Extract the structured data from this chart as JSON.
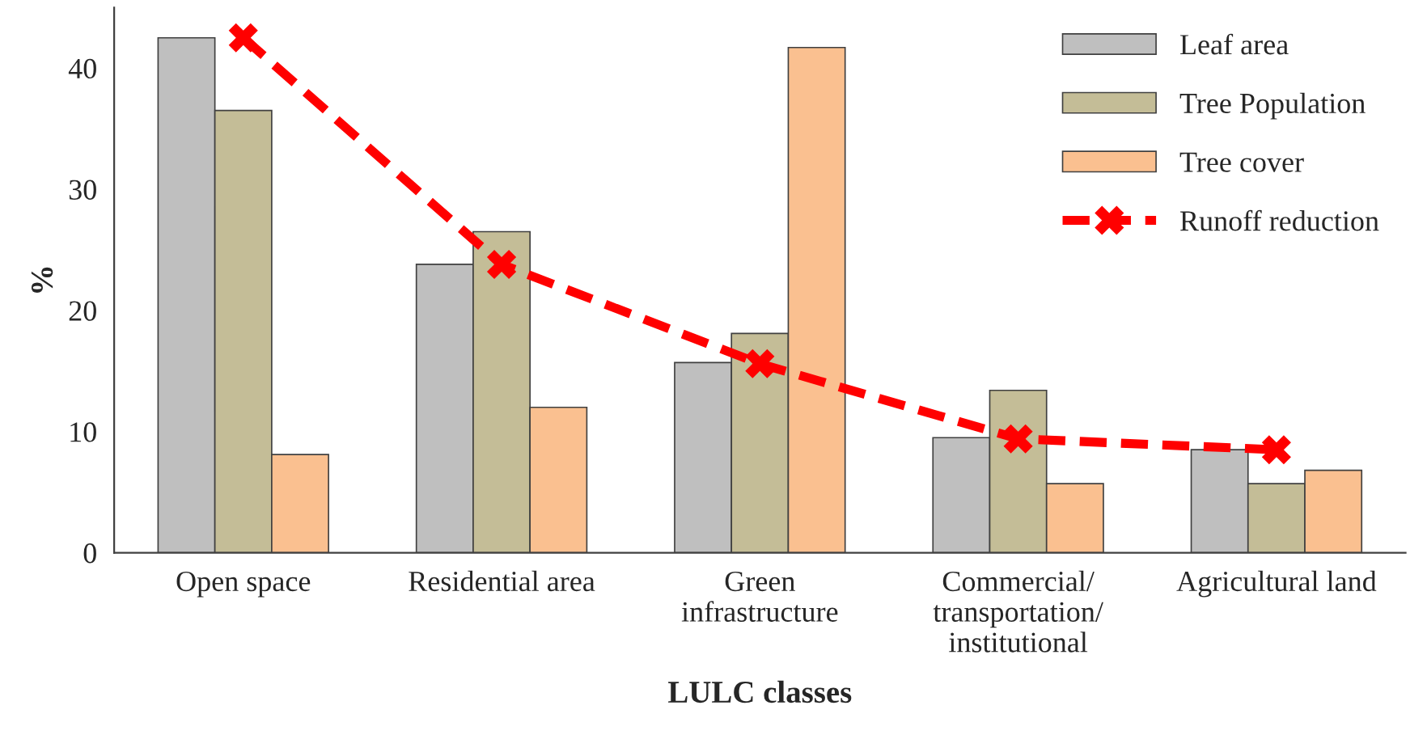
{
  "chart_data": {
    "type": "bar",
    "xlabel": "LULC classes",
    "ylabel": "%",
    "categories": [
      "Open space",
      "Residential area",
      "Green\ninfrastructure",
      "Commercial/\ntransportation/\ninstitutional",
      "Agricultural land"
    ],
    "series": [
      {
        "name": "Leaf area",
        "color": "#bfbfbf",
        "values": [
          42.5,
          23.8,
          15.7,
          9.5,
          8.5
        ]
      },
      {
        "name": "Tree Population",
        "color": "#c4bd97",
        "values": [
          36.5,
          26.5,
          18.1,
          13.4,
          5.7
        ]
      },
      {
        "name": "Tree cover",
        "color": "#fac090",
        "values": [
          8.1,
          12.0,
          41.7,
          5.7,
          6.8
        ]
      },
      {
        "name": "Runoff reduction",
        "type": "line",
        "color": "#ff0000",
        "line_style": "dashed",
        "marker": "cross",
        "values": [
          42.5,
          23.8,
          15.6,
          9.4,
          8.5
        ]
      }
    ],
    "ylim": [
      0,
      45
    ],
    "yticks": [
      0,
      10,
      20,
      30,
      40
    ],
    "grid": false,
    "legend": "top right"
  }
}
